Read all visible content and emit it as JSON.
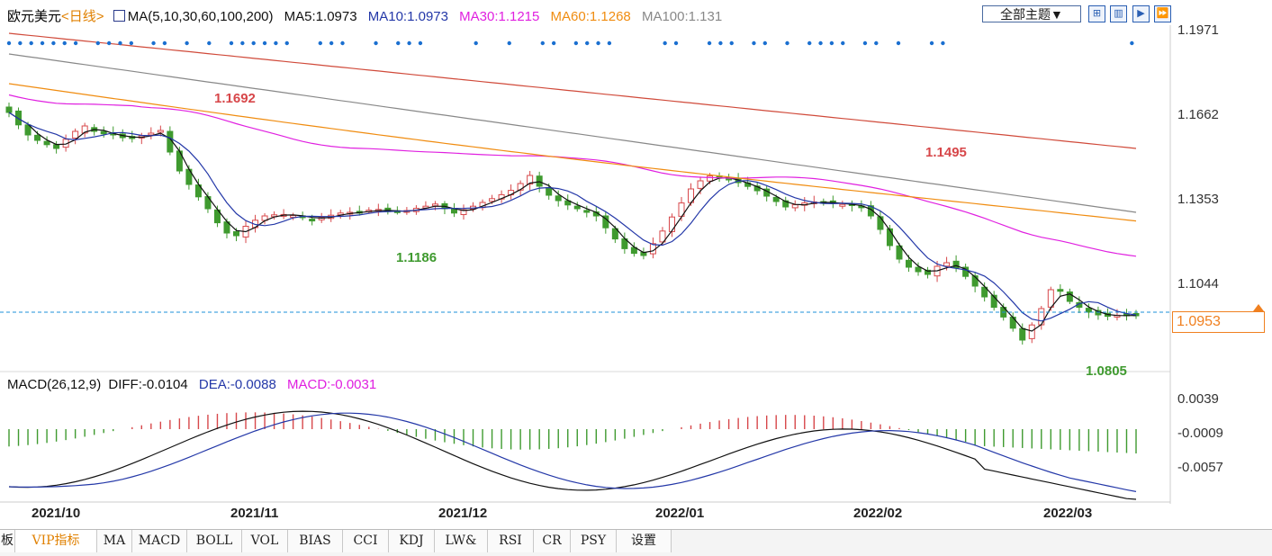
{
  "header": {
    "symbol": "欧元美元",
    "period": "<日线>",
    "ma_title": "MA(5,10,30,60,100,200)",
    "ma5": "MA5:1.0973",
    "ma10": "MA10:1.0973",
    "ma30": "MA30:1.1215",
    "ma60": "MA60:1.1268",
    "ma100": "MA100:1.131",
    "theme_button": "全部主题▼"
  },
  "colors": {
    "up": "#d7474a",
    "down": "#3f9a2f",
    "ma5": "#111111",
    "ma10": "#2438a8",
    "ma30": "#e020e0",
    "ma60": "#f08c10",
    "ma100": "#888888",
    "ma200": "#d04a3a",
    "dots": "#1a6fd0",
    "price_line": "#1e90d8",
    "current_label": "#f08020"
  },
  "price_axis": {
    "labels": [
      "1.1971",
      "1.1662",
      "1.1353",
      "1.1044"
    ],
    "current": "1.0953"
  },
  "annotations": {
    "high1": "1.1692",
    "low1": "1.1186",
    "high2": "1.1495",
    "low2": "1.0805"
  },
  "macd": {
    "title": "MACD(26,12,9)",
    "diff": "DIFF:-0.0104",
    "dea": "DEA:-0.0088",
    "macd": "MACD:-0.0031",
    "axis_labels": [
      "0.0039",
      "-0.0009",
      "-0.0057"
    ]
  },
  "date_axis": [
    "2021/10",
    "2021/11",
    "2021/12",
    "2022/01",
    "2022/02",
    "2022/03"
  ],
  "tabs": [
    "板",
    "VIP指标",
    "MA",
    "MACD",
    "BOLL",
    "VOL",
    "BIAS",
    "CCI",
    "KDJ",
    "LW&",
    "RSI",
    "CR",
    "PSY",
    "设置"
  ],
  "chart_data": {
    "type": "candlestick",
    "ylim": [
      1.075,
      1.205
    ],
    "current_price": 1.0953,
    "dates": [
      "2021/10",
      "2021/11",
      "2021/12",
      "2022/01",
      "2022/02",
      "2022/03"
    ],
    "ma_ends": {
      "ma5": 1.0973,
      "ma10": 1.0973,
      "ma30": 1.1215,
      "ma60": 1.1268,
      "ma100": 1.131
    },
    "macd_last": {
      "diff": -0.0104,
      "dea": -0.0088,
      "macd": -0.0031
    },
    "markers": {
      "high": [
        1.1692,
        1.1495
      ],
      "low": [
        1.1186,
        1.0805
      ]
    }
  }
}
